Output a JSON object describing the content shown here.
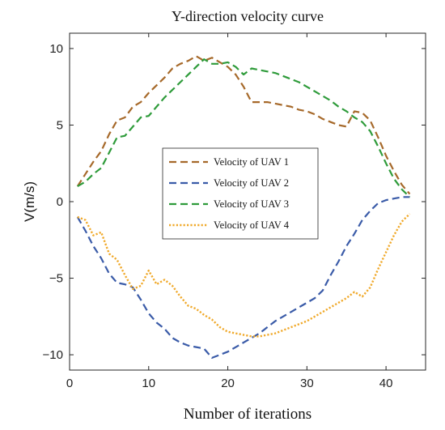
{
  "chart_data": {
    "type": "line",
    "title": "Y-direction velocity curve",
    "xlabel": "Number of iterations",
    "ylabel": "V(m/s)",
    "xlim": [
      0,
      45
    ],
    "ylim": [
      -11,
      11
    ],
    "xticks": [
      0,
      10,
      20,
      30,
      40
    ],
    "yticks": [
      -10,
      -5,
      0,
      5,
      10
    ],
    "grid": false,
    "legend_position": "center",
    "series": [
      {
        "name": "Velocity of UAV 1",
        "color": "#A6692A",
        "style": "dashed",
        "x": [
          1,
          2,
          3,
          4,
          5,
          6,
          7,
          8,
          9,
          10,
          11,
          12,
          13,
          14,
          15,
          16,
          17,
          18,
          19,
          20,
          21,
          22,
          23,
          24,
          25,
          26,
          27,
          28,
          29,
          30,
          31,
          32,
          33,
          34,
          35,
          36,
          37,
          38,
          39,
          40,
          41,
          42,
          43
        ],
        "y": [
          1.0,
          1.8,
          2.6,
          3.3,
          4.4,
          5.3,
          5.5,
          6.2,
          6.5,
          7.1,
          7.6,
          8.1,
          8.7,
          9.0,
          9.2,
          9.5,
          9.2,
          9.4,
          9.1,
          8.8,
          8.3,
          7.5,
          6.5,
          6.5,
          6.5,
          6.4,
          6.3,
          6.2,
          6.0,
          5.9,
          5.7,
          5.4,
          5.2,
          5.0,
          4.9,
          5.9,
          5.8,
          5.3,
          4.2,
          3.0,
          2.0,
          1.1,
          0.5
        ]
      },
      {
        "name": "Velocity of UAV 2",
        "color": "#3A5BA8",
        "style": "dashed",
        "x": [
          1,
          2,
          3,
          4,
          5,
          6,
          7,
          8,
          9,
          10,
          11,
          12,
          13,
          14,
          15,
          16,
          17,
          18,
          19,
          20,
          21,
          22,
          23,
          24,
          25,
          26,
          27,
          28,
          29,
          30,
          31,
          32,
          33,
          34,
          35,
          36,
          37,
          38,
          39,
          40,
          41,
          42,
          43
        ],
        "y": [
          -1.0,
          -1.9,
          -2.9,
          -3.7,
          -4.7,
          -5.3,
          -5.4,
          -5.6,
          -6.4,
          -7.3,
          -7.9,
          -8.3,
          -8.9,
          -9.2,
          -9.4,
          -9.5,
          -9.6,
          -10.2,
          -10.0,
          -9.8,
          -9.5,
          -9.2,
          -8.9,
          -8.6,
          -8.2,
          -7.8,
          -7.5,
          -7.2,
          -6.9,
          -6.6,
          -6.3,
          -5.8,
          -4.8,
          -3.9,
          -2.9,
          -2.1,
          -1.2,
          -0.6,
          -0.1,
          0.1,
          0.2,
          0.3,
          0.3
        ]
      },
      {
        "name": "Velocity of UAV 3",
        "color": "#2E9B3A",
        "style": "dashed",
        "x": [
          1,
          2,
          3,
          4,
          5,
          6,
          7,
          8,
          9,
          10,
          11,
          12,
          13,
          14,
          15,
          16,
          17,
          18,
          19,
          20,
          21,
          22,
          23,
          24,
          25,
          26,
          27,
          28,
          29,
          30,
          31,
          32,
          33,
          34,
          35,
          36,
          37,
          38,
          39,
          40,
          41,
          42,
          43
        ],
        "y": [
          1.0,
          1.3,
          1.8,
          2.2,
          3.2,
          4.2,
          4.3,
          4.9,
          5.5,
          5.6,
          6.2,
          6.8,
          7.3,
          7.8,
          8.3,
          8.8,
          9.3,
          9.0,
          9.0,
          9.1,
          8.8,
          8.3,
          8.7,
          8.6,
          8.5,
          8.4,
          8.2,
          8.0,
          7.8,
          7.5,
          7.2,
          6.9,
          6.6,
          6.2,
          5.9,
          5.5,
          5.2,
          4.6,
          3.6,
          2.5,
          1.5,
          0.8,
          0.3
        ]
      },
      {
        "name": "Velocity of UAV 4",
        "color": "#F0A92A",
        "style": "dotted",
        "x": [
          1,
          2,
          3,
          4,
          5,
          6,
          7,
          8,
          9,
          10,
          11,
          12,
          13,
          14,
          15,
          16,
          17,
          18,
          19,
          20,
          21,
          22,
          23,
          24,
          25,
          26,
          27,
          28,
          29,
          30,
          31,
          32,
          33,
          34,
          35,
          36,
          37,
          38,
          39,
          40,
          41,
          42,
          43
        ],
        "y": [
          -1.0,
          -1.2,
          -2.2,
          -2.0,
          -3.4,
          -3.8,
          -4.8,
          -5.7,
          -5.5,
          -4.5,
          -5.4,
          -5.1,
          -5.5,
          -6.2,
          -6.8,
          -7.0,
          -7.4,
          -7.7,
          -8.2,
          -8.5,
          -8.6,
          -8.7,
          -8.8,
          -8.8,
          -8.7,
          -8.6,
          -8.4,
          -8.2,
          -8.0,
          -7.8,
          -7.5,
          -7.2,
          -6.9,
          -6.6,
          -6.3,
          -5.9,
          -6.2,
          -5.6,
          -4.4,
          -3.3,
          -2.2,
          -1.3,
          -0.8
        ]
      }
    ]
  }
}
